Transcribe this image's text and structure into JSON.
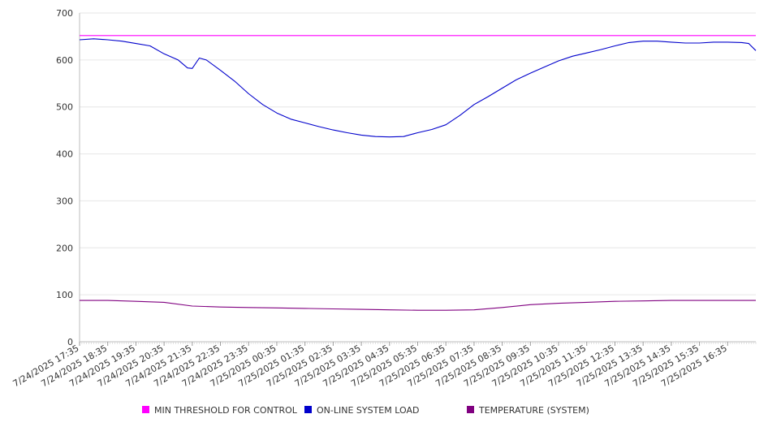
{
  "chart_data": {
    "type": "line",
    "x_tick_labels": [
      "7/24/2025 17:35",
      "7/24/2025 18:35",
      "7/24/2025 19:35",
      "7/24/2025 20:35",
      "7/24/2025 21:35",
      "7/24/2025 22:35",
      "7/24/2025 23:35",
      "7/25/2025 00:35",
      "7/25/2025 01:35",
      "7/25/2025 02:35",
      "7/25/2025 03:35",
      "7/25/2025 04:35",
      "7/25/2025 05:35",
      "7/25/2025 06:35",
      "7/25/2025 07:35",
      "7/25/2025 08:35",
      "7/25/2025 09:35",
      "7/25/2025 10:35",
      "7/25/2025 11:35",
      "7/25/2025 12:35",
      "7/25/2025 13:35",
      "7/25/2025 14:35",
      "7/25/2025 15:35",
      "7/25/2025 16:35"
    ],
    "x_range": [
      "7/24/2025 17:35",
      "7/25/2025 17:35"
    ],
    "ylim": [
      0,
      700
    ],
    "y_ticks": [
      0,
      100,
      200,
      300,
      400,
      500,
      600,
      700
    ],
    "grid": true,
    "legend_position": "bottom",
    "series": [
      {
        "name": "MIN THRESHOLD FOR CONTROL",
        "color": "#ff00ff",
        "x": [
          "7/24/2025 17:35",
          "7/25/2025 17:35"
        ],
        "values": [
          652,
          652
        ]
      },
      {
        "name": "ON-LINE SYSTEM LOAD",
        "color": "#0000cc",
        "x": [
          "7/24/2025 17:35",
          "7/24/2025 18:05",
          "7/24/2025 18:35",
          "7/24/2025 19:05",
          "7/24/2025 19:35",
          "7/24/2025 20:05",
          "7/24/2025 20:35",
          "7/24/2025 21:05",
          "7/24/2025 21:25",
          "7/24/2025 21:35",
          "7/24/2025 21:50",
          "7/24/2025 22:05",
          "7/24/2025 22:35",
          "7/24/2025 23:05",
          "7/24/2025 23:35",
          "7/25/2025 00:05",
          "7/25/2025 00:35",
          "7/25/2025 01:05",
          "7/25/2025 01:35",
          "7/25/2025 02:05",
          "7/25/2025 02:35",
          "7/25/2025 03:05",
          "7/25/2025 03:35",
          "7/25/2025 04:05",
          "7/25/2025 04:35",
          "7/25/2025 05:05",
          "7/25/2025 05:35",
          "7/25/2025 06:05",
          "7/25/2025 06:35",
          "7/25/2025 07:05",
          "7/25/2025 07:35",
          "7/25/2025 08:05",
          "7/25/2025 08:35",
          "7/25/2025 09:05",
          "7/25/2025 09:35",
          "7/25/2025 10:05",
          "7/25/2025 10:35",
          "7/25/2025 11:05",
          "7/25/2025 11:35",
          "7/25/2025 12:05",
          "7/25/2025 12:35",
          "7/25/2025 13:05",
          "7/25/2025 13:35",
          "7/25/2025 14:05",
          "7/25/2025 14:35",
          "7/25/2025 15:05",
          "7/25/2025 15:35",
          "7/25/2025 16:05",
          "7/25/2025 16:35",
          "7/25/2025 17:05",
          "7/25/2025 17:20",
          "7/25/2025 17:35"
        ],
        "values": [
          643,
          645,
          643,
          640,
          635,
          630,
          613,
          600,
          583,
          582,
          604,
          600,
          578,
          555,
          528,
          505,
          487,
          474,
          466,
          458,
          451,
          445,
          440,
          437,
          436,
          437,
          445,
          452,
          462,
          482,
          505,
          522,
          540,
          558,
          572,
          585,
          598,
          608,
          615,
          622,
          630,
          637,
          640,
          640,
          638,
          636,
          636,
          638,
          638,
          637,
          635,
          620
        ]
      },
      {
        "name": "TEMPERATURE (SYSTEM)",
        "color": "#800080",
        "x": [
          "7/24/2025 17:35",
          "7/24/2025 18:35",
          "7/24/2025 19:35",
          "7/24/2025 20:35",
          "7/24/2025 21:35",
          "7/24/2025 22:35",
          "7/24/2025 23:35",
          "7/25/2025 00:35",
          "7/25/2025 01:35",
          "7/25/2025 02:35",
          "7/25/2025 03:35",
          "7/25/2025 04:35",
          "7/25/2025 05:35",
          "7/25/2025 06:35",
          "7/25/2025 07:35",
          "7/25/2025 08:35",
          "7/25/2025 09:35",
          "7/25/2025 10:35",
          "7/25/2025 11:35",
          "7/25/2025 12:35",
          "7/25/2025 13:35",
          "7/25/2025 14:35",
          "7/25/2025 15:35",
          "7/25/2025 16:35",
          "7/25/2025 17:35"
        ],
        "values": [
          88,
          88,
          86,
          84,
          76,
          74,
          73,
          72,
          71,
          70,
          69,
          68,
          67,
          67,
          68,
          73,
          79,
          82,
          84,
          86,
          87,
          88,
          88,
          88,
          88
        ]
      }
    ]
  }
}
